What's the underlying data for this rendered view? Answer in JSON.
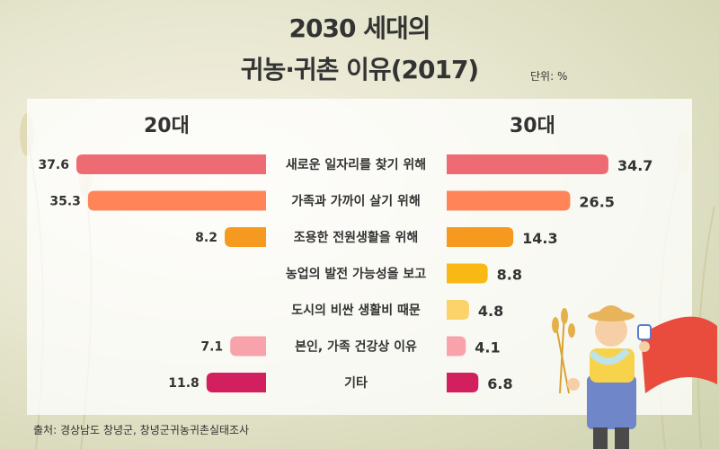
{
  "title_line1": "2030 세대의",
  "title_line2": "귀농·귀촌 이유(2017)",
  "unit": "단위: %",
  "source": "출처: 경상남도 창녕군, 창녕군귀농귀촌실태조사",
  "colors": {
    "pink": "#ee6b73",
    "salmon": "#ff8458",
    "orange": "#f59a1e",
    "yellow": "#f9b814",
    "light_yellow": "#fcd26a",
    "light_pink": "#f8a3ac",
    "magenta": "#d21f5d"
  },
  "chart_data": {
    "type": "bar",
    "orientation": "horizontal",
    "layout": "butterfly",
    "title": "2030 세대의 귀농·귀촌 이유(2017)",
    "unit": "%",
    "categories": [
      "새로운 일자리를 찾기 위해",
      "가족과 가까이 살기 위해",
      "조용한 전원생활을 위해",
      "농업의 발전 가능성을 보고",
      "도시의 비싼 생활비 때문",
      "본인, 가족 건강상 이유",
      "기타"
    ],
    "series": [
      {
        "name": "20대",
        "values": [
          37.6,
          35.3,
          8.2,
          null,
          null,
          7.1,
          11.8
        ]
      },
      {
        "name": "30대",
        "values": [
          34.7,
          26.5,
          14.3,
          8.8,
          4.8,
          4.1,
          6.8
        ]
      }
    ],
    "bar_colors": [
      "#ee6b73",
      "#ff8458",
      "#f59a1e",
      "#f9b814",
      "#fcd26a",
      "#f8a3ac",
      "#d21f5d"
    ]
  }
}
